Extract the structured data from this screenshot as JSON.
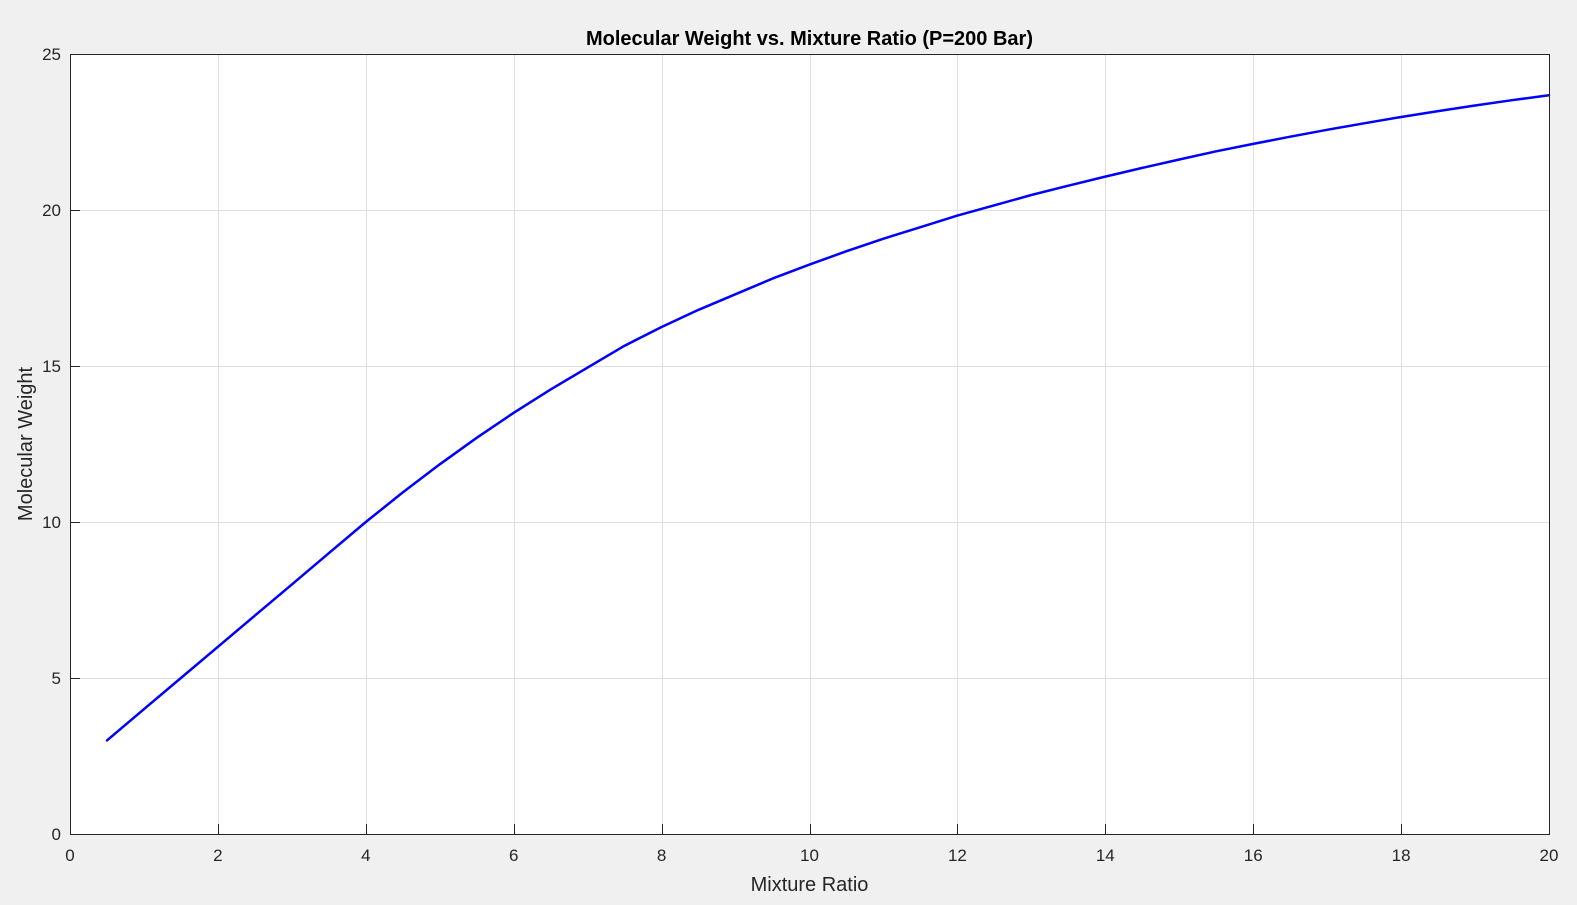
{
  "chart_data": {
    "type": "line",
    "title": "Molecular Weight vs. Mixture Ratio (P=200 Bar)",
    "xlabel": "Mixture Ratio",
    "ylabel": "Molecular Weight",
    "xlim": [
      0,
      20
    ],
    "ylim": [
      0,
      25
    ],
    "xticks": [
      0,
      2,
      4,
      6,
      8,
      10,
      12,
      14,
      16,
      18,
      20
    ],
    "yticks": [
      0,
      5,
      10,
      15,
      20,
      25
    ],
    "grid": true,
    "legend": "none",
    "series": [
      {
        "color": "#0000ff",
        "x": [
          0.5,
          1,
          1.5,
          2,
          2.5,
          3,
          3.5,
          4,
          4.5,
          5,
          5.5,
          6,
          6.5,
          7,
          7.5,
          8,
          8.5,
          9,
          9.5,
          10,
          10.5,
          11,
          11.5,
          12,
          12.5,
          13,
          13.5,
          14,
          14.5,
          15,
          15.5,
          16,
          16.5,
          17,
          17.5,
          18,
          18.5,
          19,
          19.5,
          20
        ],
        "y": [
          3.0,
          4.0,
          5.0,
          6.0,
          7.0,
          8.0,
          9.0,
          10.0,
          10.95,
          11.85,
          12.7,
          13.5,
          14.25,
          14.95,
          15.65,
          16.25,
          16.8,
          17.3,
          17.8,
          18.25,
          18.68,
          19.08,
          19.45,
          19.82,
          20.15,
          20.48,
          20.78,
          21.07,
          21.35,
          21.62,
          21.88,
          22.12,
          22.35,
          22.57,
          22.78,
          22.98,
          23.17,
          23.35,
          23.52,
          23.68
        ]
      }
    ]
  }
}
